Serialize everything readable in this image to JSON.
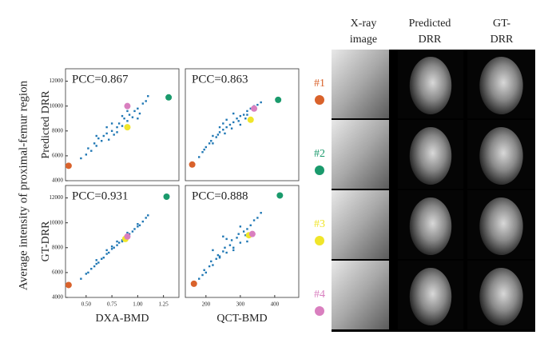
{
  "figure": {
    "y_label": "Average intensity of proximal-femur region",
    "column_headers": [
      [
        "X-ray",
        "image"
      ],
      [
        "Predicted",
        "DRR"
      ],
      [
        "GT-",
        "DRR"
      ]
    ],
    "row_labels": [
      {
        "text": "#1",
        "color": "#d9622b"
      },
      {
        "text": "#2",
        "color": "#1a9a6c"
      },
      {
        "text": "#3",
        "color": "#f0e52a"
      },
      {
        "text": "#4",
        "color": "#d97fbf"
      }
    ]
  },
  "chart_data": [
    {
      "type": "scatter",
      "annotation": "PCC=0.867",
      "y_label": "Predicted DRR",
      "xlim": [
        0.3,
        1.4
      ],
      "ylim": [
        4000,
        13000
      ],
      "yticks": [
        4000,
        6000,
        8000,
        10000,
        12000
      ],
      "series": [
        {
          "color": "#1f77b4",
          "x": [
            0.45,
            0.5,
            0.52,
            0.55,
            0.58,
            0.6,
            0.62,
            0.65,
            0.67,
            0.7,
            0.72,
            0.75,
            0.77,
            0.8,
            0.82,
            0.85,
            0.87,
            0.9,
            0.92,
            0.95,
            0.97,
            1.0,
            1.02,
            1.05,
            1.08,
            1.1,
            0.6,
            0.7,
            0.8,
            0.9,
            1.0,
            0.75,
            0.85
          ],
          "values": [
            5800,
            6100,
            6600,
            6400,
            7000,
            6800,
            7400,
            7200,
            7600,
            7800,
            7300,
            8000,
            7700,
            8300,
            8600,
            8400,
            9000,
            8800,
            9300,
            9100,
            9600,
            9800,
            9400,
            10200,
            10400,
            10800,
            7600,
            8300,
            7900,
            9600,
            9000,
            8600,
            9200
          ]
        },
        {
          "color": "#d9622b",
          "x": [
            0.33
          ],
          "values": [
            5200
          ]
        },
        {
          "color": "#1a9a6c",
          "x": [
            1.3
          ],
          "values": [
            10700
          ]
        },
        {
          "color": "#f0e52a",
          "x": [
            0.9
          ],
          "values": [
            8300
          ]
        },
        {
          "color": "#d97fbf",
          "x": [
            0.9
          ],
          "values": [
            10000
          ]
        }
      ]
    },
    {
      "type": "scatter",
      "annotation": "PCC=0.863",
      "xlim": [
        140,
        470
      ],
      "ylim": [
        4000,
        13000
      ],
      "series": [
        {
          "color": "#1f77b4",
          "x": [
            180,
            190,
            195,
            200,
            210,
            215,
            220,
            230,
            235,
            240,
            250,
            255,
            260,
            270,
            275,
            280,
            290,
            295,
            300,
            310,
            315,
            320,
            330,
            340,
            350,
            360,
            220,
            240,
            260,
            300,
            320,
            250,
            280
          ],
          "values": [
            5900,
            6300,
            6500,
            6700,
            7000,
            7200,
            7000,
            7500,
            7700,
            7900,
            8100,
            7800,
            8300,
            8500,
            8200,
            8700,
            9000,
            8800,
            9200,
            9300,
            9000,
            9600,
            9800,
            10000,
            10100,
            10300,
            7600,
            8300,
            8900,
            8500,
            9300,
            8600,
            9400
          ]
        },
        {
          "color": "#d9622b",
          "x": [
            160
          ],
          "values": [
            5300
          ]
        },
        {
          "color": "#1a9a6c",
          "x": [
            410
          ],
          "values": [
            10500
          ]
        },
        {
          "color": "#f0e52a",
          "x": [
            330
          ],
          "values": [
            8900
          ]
        },
        {
          "color": "#d97fbf",
          "x": [
            340
          ],
          "values": [
            9800
          ]
        }
      ]
    },
    {
      "type": "scatter",
      "annotation": "PCC=0.931",
      "y_label": "GT-DRR",
      "x_label": "DXA-BMD",
      "xlim": [
        0.3,
        1.4
      ],
      "ylim": [
        4000,
        13000
      ],
      "yticks": [
        4000,
        6000,
        8000,
        10000,
        12000
      ],
      "xticks": [
        {
          "value": 0.5,
          "label": "0.50"
        },
        0.75,
        {
          "value": 1,
          "label": "1.00"
        },
        1.25
      ],
      "series": [
        {
          "color": "#1f77b4",
          "x": [
            0.45,
            0.5,
            0.52,
            0.55,
            0.58,
            0.6,
            0.62,
            0.65,
            0.67,
            0.7,
            0.72,
            0.75,
            0.77,
            0.8,
            0.82,
            0.85,
            0.87,
            0.9,
            0.92,
            0.95,
            0.97,
            1.0,
            1.02,
            1.05,
            1.08,
            1.1,
            0.6,
            0.7,
            0.8,
            0.9,
            1.0,
            0.75,
            0.85
          ],
          "values": [
            5500,
            5900,
            6000,
            6300,
            6500,
            6700,
            6800,
            7100,
            7200,
            7500,
            7600,
            7900,
            8000,
            8200,
            8400,
            8600,
            8800,
            8900,
            9100,
            9300,
            9500,
            9700,
            9800,
            10100,
            10400,
            10600,
            7000,
            7800,
            8500,
            9200,
            9900,
            8100,
            8500
          ]
        },
        {
          "color": "#d9622b",
          "x": [
            0.33
          ],
          "values": [
            5000
          ]
        },
        {
          "color": "#1a9a6c",
          "x": [
            1.28
          ],
          "values": [
            12100
          ]
        },
        {
          "color": "#f0e52a",
          "x": [
            0.88
          ],
          "values": [
            8700
          ]
        },
        {
          "color": "#d97fbf",
          "x": [
            0.9
          ],
          "values": [
            8900
          ]
        }
      ]
    },
    {
      "type": "scatter",
      "annotation": "PCC=0.888",
      "x_label": "QCT-BMD",
      "xlim": [
        140,
        470
      ],
      "ylim": [
        4000,
        13000
      ],
      "xticks": [
        200,
        300,
        400
      ],
      "series": [
        {
          "color": "#1f77b4",
          "x": [
            180,
            190,
            195,
            200,
            210,
            215,
            220,
            230,
            235,
            240,
            250,
            255,
            260,
            270,
            275,
            280,
            290,
            295,
            300,
            310,
            315,
            320,
            330,
            340,
            350,
            360,
            220,
            240,
            260,
            300,
            320,
            250,
            280
          ],
          "values": [
            5500,
            5800,
            6200,
            6000,
            6500,
            6900,
            6600,
            7100,
            7400,
            7200,
            7700,
            8000,
            7600,
            8200,
            8600,
            8000,
            8800,
            9100,
            8400,
            9300,
            9000,
            9500,
            9800,
            10200,
            10400,
            10800,
            7800,
            7300,
            8700,
            9700,
            8500,
            8900,
            7800
          ]
        },
        {
          "color": "#d9622b",
          "x": [
            165
          ],
          "values": [
            5100
          ]
        },
        {
          "color": "#1a9a6c",
          "x": [
            415
          ],
          "values": [
            12200
          ]
        },
        {
          "color": "#f0e52a",
          "x": [
            325
          ],
          "values": [
            9000
          ]
        },
        {
          "color": "#d97fbf",
          "x": [
            335
          ],
          "values": [
            9100
          ]
        }
      ]
    }
  ]
}
